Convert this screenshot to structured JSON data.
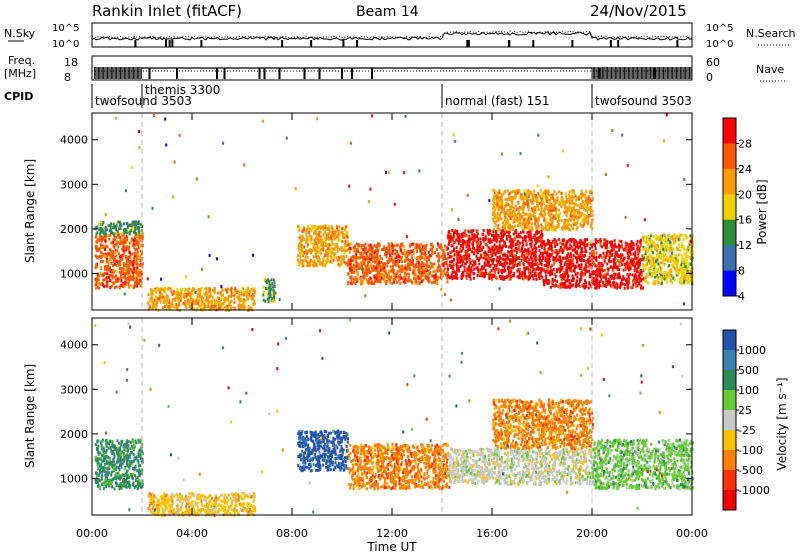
{
  "header": {
    "station": "Rankin Inlet (fitACF)",
    "beam": "Beam 14",
    "date": "24/Nov/2015"
  },
  "strips": {
    "nsky_label": "N.Sky",
    "nsearch_label": "N.Search",
    "freq_label_1": "Freq.",
    "freq_label_2": "[MHz]",
    "nave_label": "Nave",
    "cpid_label": "CPID",
    "nsky_tick_top": "10^5",
    "nsky_tick_bottom": "10^0",
    "freq_tick_top": "18",
    "freq_tick_bottom": "8",
    "nave_tick_top": "60",
    "nave_tick_bottom": "0"
  },
  "cpid": [
    {
      "label": "twofsound 3503",
      "start": 0.0
    },
    {
      "label": "themis 3300",
      "start": 2.0
    },
    {
      "label": "normal (fast) 151",
      "start": 14.0
    },
    {
      "label": "twofsound 3503",
      "start": 20.0
    }
  ],
  "axes": {
    "ylabel": "Slant Range [km]",
    "xlabel": "Time UT",
    "yticks": [
      "1000",
      "2000",
      "3000",
      "4000"
    ],
    "xticks": [
      "00:00",
      "04:00",
      "08:00",
      "12:00",
      "16:00",
      "20:00",
      "00:00"
    ]
  },
  "colorbars": {
    "power": {
      "label": "Power [dB]",
      "ticks": [
        "28",
        "24",
        "20",
        "16",
        "12",
        "8",
        "4"
      ],
      "colors": [
        "#ff0000",
        "#ff5a00",
        "#ff9a00",
        "#f0d000",
        "#2e8b3a",
        "#3c6fb0",
        "#0000ff"
      ]
    },
    "velocity": {
      "label": "Velocity [m s⁻¹]",
      "ticks": [
        "1000",
        "500",
        "100",
        "25",
        "-25",
        "-100",
        "-500",
        "-1000"
      ],
      "colors": [
        "#2255aa",
        "#3c7fb0",
        "#2e8b57",
        "#66cc33",
        "#c8c8c8",
        "#ffc000",
        "#ff8000",
        "#ff3000",
        "#ee0000"
      ]
    }
  },
  "chart_data": [
    {
      "type": "heatmap",
      "title": "Power",
      "xlabel": "Time UT",
      "ylabel": "Slant Range [km]",
      "xlim": [
        0,
        24
      ],
      "ylim": [
        180,
        4600
      ],
      "colorbar_label": "Power [dB]",
      "regions": [
        {
          "t0": 0.1,
          "t1": 2.0,
          "r0": 700,
          "r1": 1900,
          "value": 26
        },
        {
          "t0": 0.1,
          "t1": 2.0,
          "r0": 1900,
          "r1": 2200,
          "value": 12
        },
        {
          "t0": 2.2,
          "t1": 6.5,
          "r0": 200,
          "r1": 700,
          "value": 20
        },
        {
          "t0": 6.8,
          "t1": 7.3,
          "r0": 400,
          "r1": 900,
          "value": 12
        },
        {
          "t0": 8.2,
          "t1": 10.2,
          "r0": 1200,
          "r1": 2100,
          "value": 20
        },
        {
          "t0": 10.2,
          "t1": 14.2,
          "r0": 800,
          "r1": 1700,
          "value": 26
        },
        {
          "t0": 14.2,
          "t1": 18.0,
          "r0": 900,
          "r1": 2000,
          "value": 28
        },
        {
          "t0": 16.0,
          "t1": 20.0,
          "r0": 2000,
          "r1": 2900,
          "value": 20
        },
        {
          "t0": 18.0,
          "t1": 22.0,
          "r0": 700,
          "r1": 1800,
          "value": 28
        },
        {
          "t0": 22.0,
          "t1": 24.0,
          "r0": 800,
          "r1": 1900,
          "value": 16
        }
      ]
    },
    {
      "type": "heatmap",
      "title": "Velocity",
      "xlabel": "Time UT",
      "ylabel": "Slant Range [km]",
      "xlim": [
        0,
        24
      ],
      "ylim": [
        180,
        4600
      ],
      "colorbar_label": "Velocity [m s-1]",
      "regions": [
        {
          "t0": 0.1,
          "t1": 2.0,
          "r0": 800,
          "r1": 1900,
          "value": 100
        },
        {
          "t0": 2.2,
          "t1": 6.5,
          "r0": 200,
          "r1": 700,
          "value": -100
        },
        {
          "t0": 8.2,
          "t1": 10.2,
          "r0": 1200,
          "r1": 2100,
          "value": 1000
        },
        {
          "t0": 10.2,
          "t1": 14.2,
          "r0": 800,
          "r1": 1800,
          "value": -300
        },
        {
          "t0": 14.2,
          "t1": 20.0,
          "r0": 900,
          "r1": 1700,
          "value": 0
        },
        {
          "t0": 16.0,
          "t1": 20.0,
          "r0": 1700,
          "r1": 2100,
          "value": -500
        },
        {
          "t0": 16.0,
          "t1": 20.0,
          "r0": 2100,
          "r1": 2800,
          "value": -300
        },
        {
          "t0": 20.0,
          "t1": 24.0,
          "r0": 800,
          "r1": 1900,
          "value": 60
        }
      ]
    }
  ]
}
